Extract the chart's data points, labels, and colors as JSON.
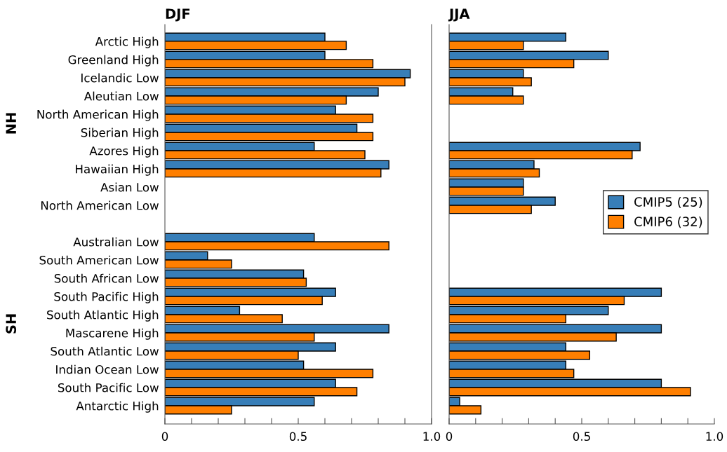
{
  "chart_data": [
    {
      "type": "bar",
      "orientation": "horizontal",
      "title": "DJF",
      "categories": [
        "Arctic High",
        "Greenland High",
        "Icelandic Low",
        "Aleutian Low",
        "North American High",
        "Siberian High",
        "Azores High",
        "Hawaiian High",
        "Asian Low",
        "North American Low",
        null,
        "Australian Low",
        "South American Low",
        "South African Low",
        "South Pacific High",
        "South Atlantic High",
        "Mascarene High",
        "South Atlantic Low",
        "Indian Ocean Low",
        "South Pacific Low",
        "Antarctic High"
      ],
      "series": [
        {
          "color": "#377eb8",
          "values": [
            0.6,
            0.6,
            0.92,
            0.8,
            0.64,
            0.72,
            0.56,
            0.84,
            null,
            null,
            null,
            0.56,
            0.16,
            0.52,
            0.64,
            0.28,
            0.84,
            0.64,
            0.52,
            0.64,
            0.56
          ]
        },
        {
          "color": "#ff7f00",
          "values": [
            0.68,
            0.78,
            0.9,
            0.68,
            0.78,
            0.78,
            0.75,
            0.81,
            null,
            null,
            null,
            0.84,
            0.25,
            0.53,
            0.59,
            0.44,
            0.56,
            0.5,
            0.78,
            0.72,
            0.25
          ]
        }
      ],
      "annotations": [
        "NH",
        "SH"
      ],
      "xlim": [
        0,
        1
      ],
      "xticks": [
        0,
        {
          "value": 0.1,
          "label": null
        },
        {
          "value": 0.2,
          "label": null
        },
        {
          "value": 0.3,
          "label": null
        },
        {
          "value": 0.4,
          "label": null
        },
        0.5,
        {
          "value": 0.6,
          "label": null
        },
        {
          "value": 0.7,
          "label": null
        },
        {
          "value": 0.8,
          "label": null
        },
        {
          "value": 0.9,
          "label": null
        },
        {
          "value": 1,
          "label": "1.0"
        }
      ],
      "grid": false,
      "legend": false
    },
    {
      "type": "bar",
      "orientation": "horizontal",
      "title": "JJA",
      "categories": [
        null,
        null,
        null,
        null,
        null,
        null,
        null,
        null,
        null,
        null,
        null,
        null,
        null,
        null,
        null,
        null,
        null,
        null,
        null,
        null,
        null
      ],
      "series": [
        {
          "name": "CMIP5 (25)",
          "color": "#377eb8",
          "values": [
            0.44,
            0.6,
            0.28,
            0.24,
            null,
            null,
            0.72,
            0.32,
            0.28,
            0.4,
            null,
            null,
            null,
            null,
            0.8,
            0.6,
            0.8,
            0.44,
            0.44,
            0.8,
            0.04
          ]
        },
        {
          "name": "CMIP6 (32)",
          "color": "#ff7f00",
          "values": [
            0.28,
            0.47,
            0.31,
            0.28,
            null,
            null,
            0.69,
            0.34,
            0.28,
            0.31,
            null,
            null,
            null,
            null,
            0.66,
            0.44,
            0.63,
            0.53,
            0.47,
            0.91,
            0.12
          ]
        }
      ],
      "xlim": [
        0,
        1
      ],
      "xticks": [
        0,
        {
          "value": 0.1,
          "label": null
        },
        {
          "value": 0.2,
          "label": null
        },
        {
          "value": 0.3,
          "label": null
        },
        {
          "value": 0.4,
          "label": null
        },
        0.5,
        {
          "value": 0.6,
          "label": null
        },
        {
          "value": 0.7,
          "label": null
        },
        {
          "value": 0.8,
          "label": null
        },
        {
          "value": 0.9,
          "label": null
        },
        {
          "value": 1,
          "label": "1.0"
        }
      ],
      "tick_labels": "x",
      "grid": false,
      "legend": "center right"
    }
  ]
}
